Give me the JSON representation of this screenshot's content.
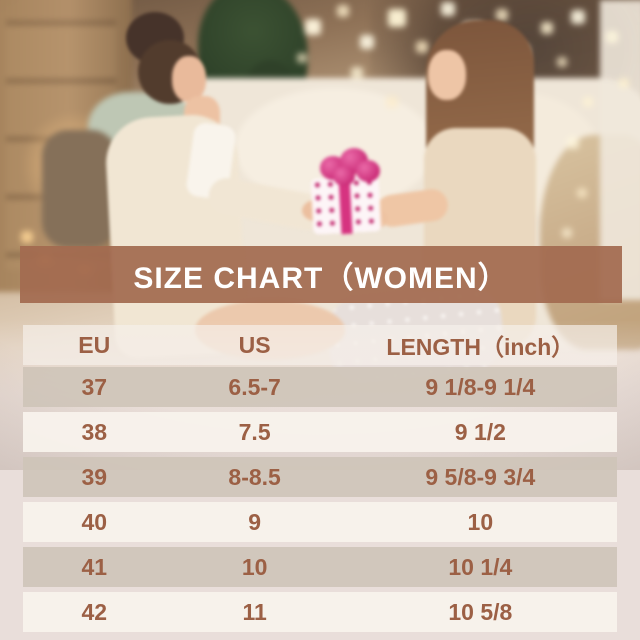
{
  "title_band": {
    "label": "SIZE CHART（WOMEN）"
  },
  "chart_data": {
    "type": "table",
    "title": "SIZE CHART（WOMEN）",
    "columns": [
      "EU",
      "US",
      "LENGTH（inch）"
    ],
    "rows": [
      [
        "37",
        "6.5-7",
        "9 1/8-9 1/4"
      ],
      [
        "38",
        "7.5",
        "9 1/2"
      ],
      [
        "39",
        "8-8.5",
        "9 5/8-9 3/4"
      ],
      [
        "40",
        "9",
        "10"
      ],
      [
        "41",
        "10",
        "10 1/4"
      ],
      [
        "42",
        "11",
        "10 5/8"
      ]
    ],
    "layout_hints": {
      "row_striping": "alternating dark/light bands over photo background",
      "header_style": "translucent light band"
    }
  },
  "photo": {
    "subject": "two-women-exchanging-pink-gift-on-couch-with-warm-bokeh-lights"
  },
  "colors": {
    "title_band_brown": "#a36b50",
    "table_text_brown": "#9c6045",
    "row_dark": "#d2c8bc",
    "row_light": "#f8f2ec",
    "page_background": "#e9deda",
    "gift_pink": "#cb2d78"
  }
}
